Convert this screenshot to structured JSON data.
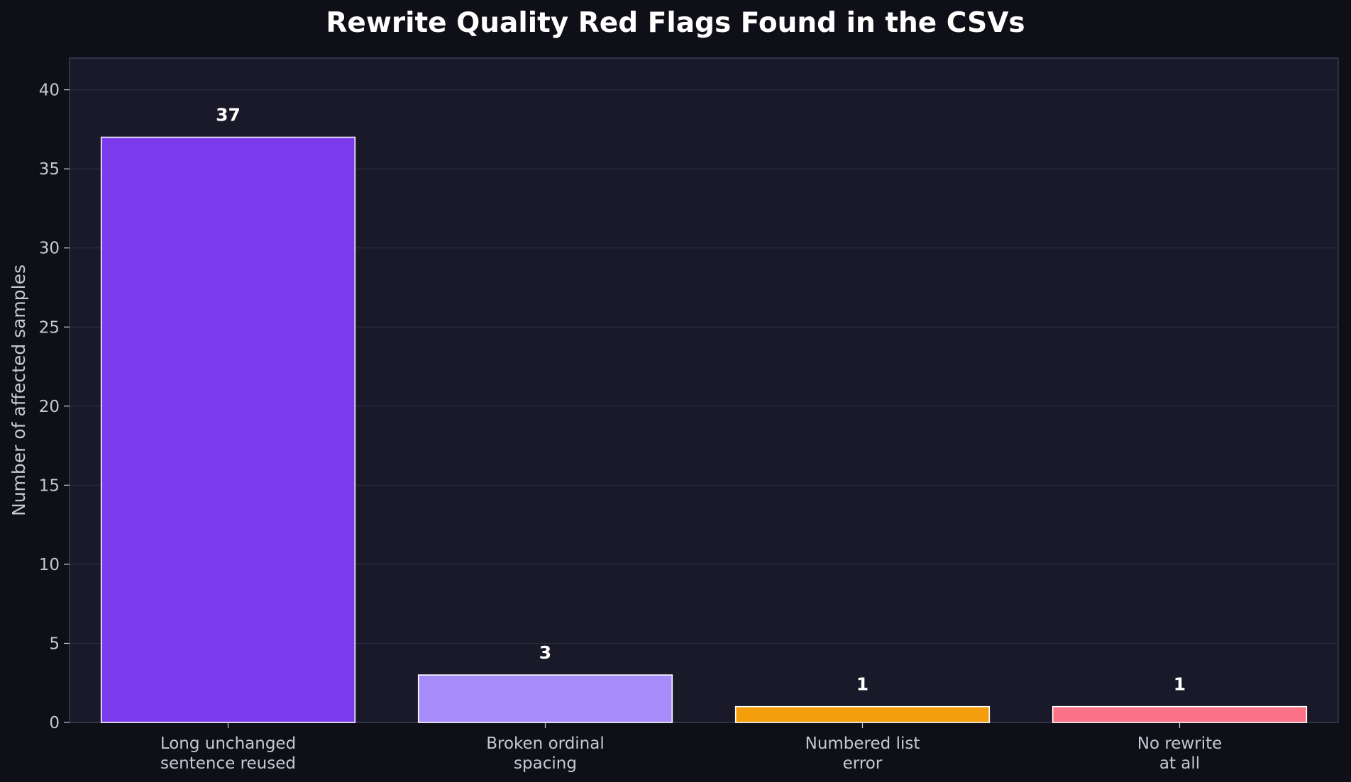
{
  "chart_data": {
    "type": "bar",
    "title": "Rewrite Quality Red Flags Found in the CSVs",
    "xlabel": "",
    "ylabel": "Number of affected samples",
    "categories": [
      [
        "Long unchanged",
        "sentence reused"
      ],
      [
        "Broken ordinal",
        "spacing"
      ],
      [
        "Numbered list",
        "error"
      ],
      [
        "No rewrite",
        "at all"
      ]
    ],
    "values": [
      37,
      3,
      1,
      1
    ],
    "value_labels": [
      "37",
      "3",
      "1",
      "1"
    ],
    "colors": [
      "#7c3aed",
      "#a78bfa",
      "#f59e0b",
      "#fb7185"
    ],
    "ylim": [
      0,
      42
    ],
    "yticks": [
      0,
      5,
      10,
      15,
      20,
      25,
      30,
      35,
      40
    ],
    "grid": true,
    "legend": "none"
  },
  "theme": {
    "page_bg": "#0f0f18",
    "plot_bg": "#191929",
    "grid_color": "#2c2c40",
    "axis_color": "#3a3a52",
    "text_color": "#c8c8d2",
    "bar_edge": "#ffffff"
  }
}
